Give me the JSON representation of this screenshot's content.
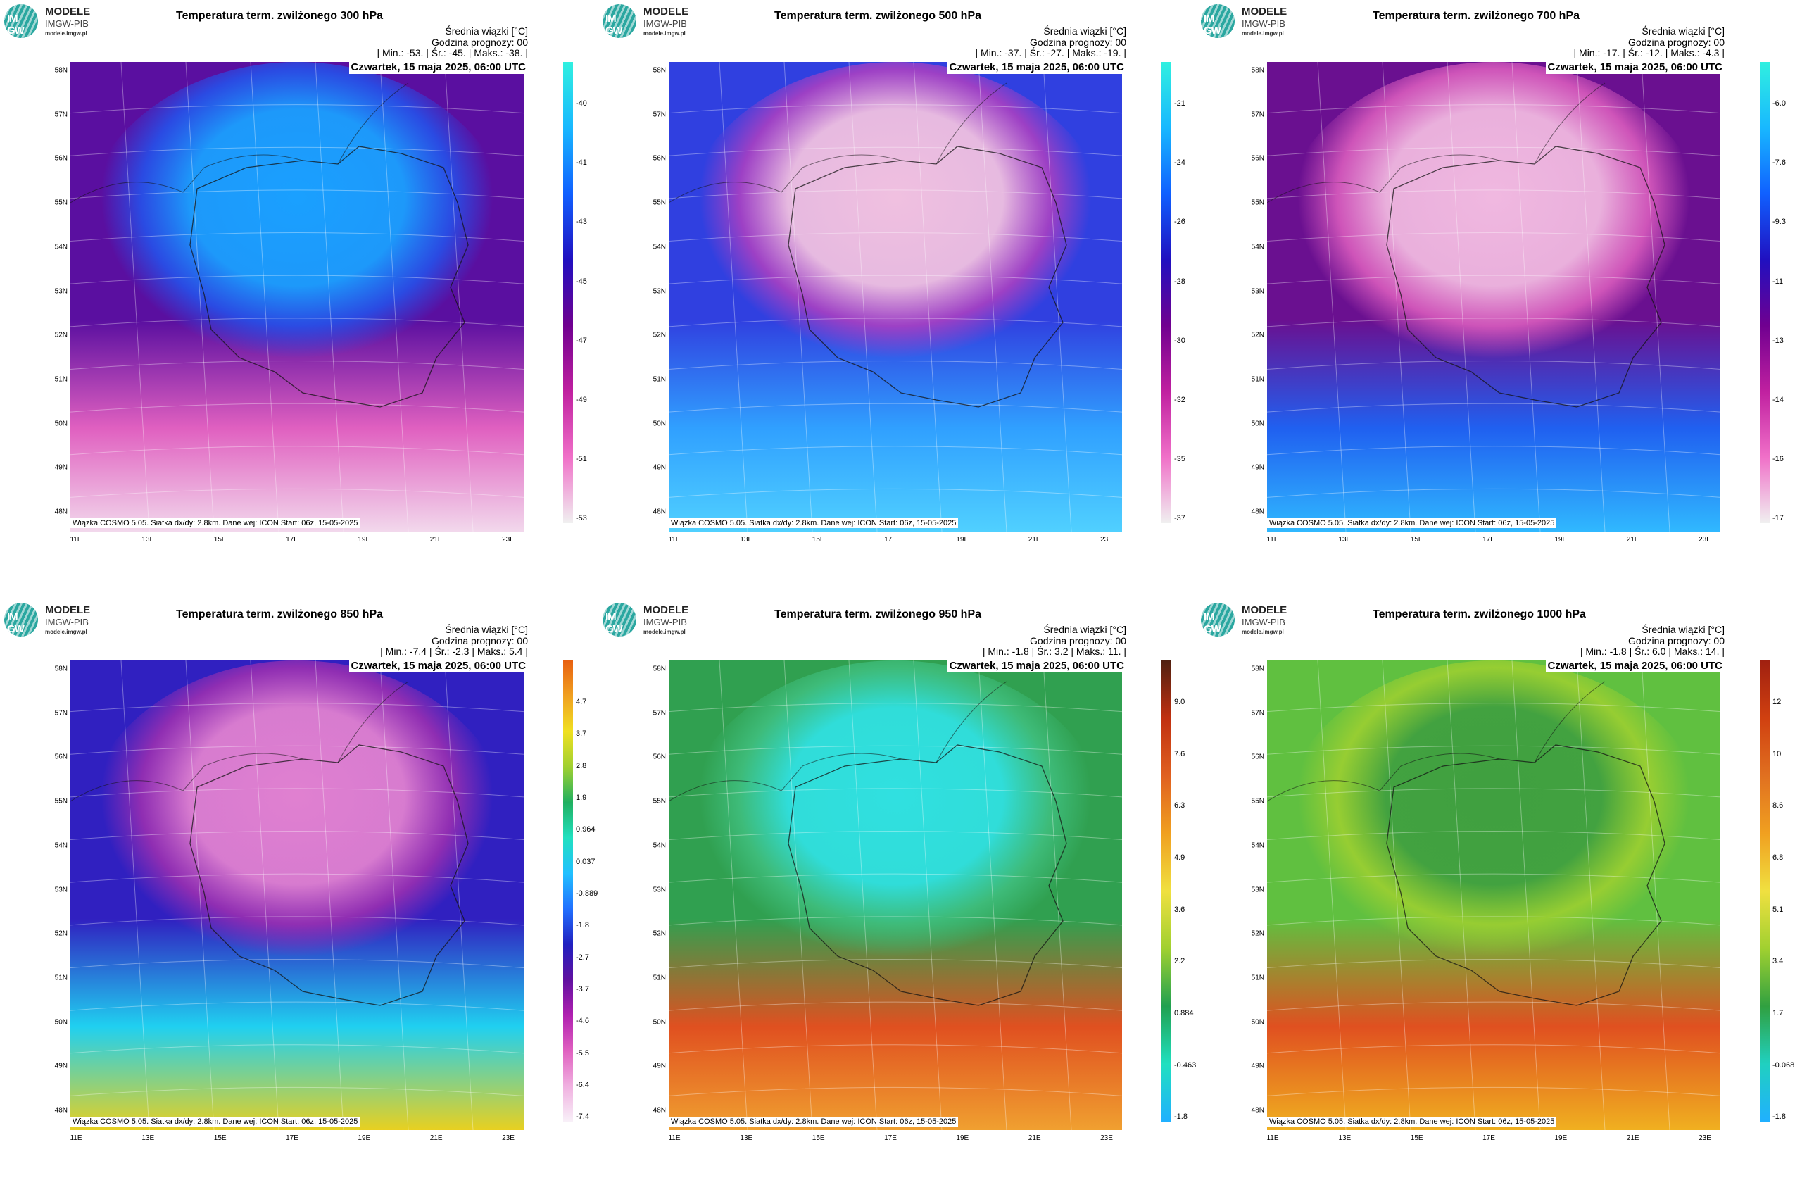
{
  "logo": {
    "name": "MODELE",
    "org": "IMGW-PIB",
    "url": "modele.imgw.pl",
    "mark_top": "IM",
    "mark_bottom": "GW"
  },
  "common": {
    "mean_label": "Średnia wiązki [°C]",
    "forecast_hour": "Godzina prognozy: 00",
    "date": "Czwartek, 15 maja 2025, 06:00 UTC",
    "footer": "Wiązka COSMO 5.05. Siatka dx/dy: 2.8km. Dane wej: ICON Start: 06z, 15-05-2025",
    "lat_labels": [
      "58N",
      "57N",
      "56N",
      "55N",
      "54N",
      "53N",
      "52N",
      "51N",
      "50N",
      "49N",
      "48N"
    ],
    "lon_labels": [
      "11E",
      "13E",
      "15E",
      "17E",
      "19E",
      "21E",
      "23E"
    ]
  },
  "panels": [
    {
      "title": "Temperatura term. zwilżonego 300 hPa",
      "stats": "| Min.:   -53. | Śr.:   -45. | Maks.:   -38. |",
      "min": -53,
      "mean": -45,
      "max": -38,
      "colorbar_ticks": [
        "-40",
        "-41",
        "-43",
        "-45",
        "-47",
        "-49",
        "-51",
        "-53"
      ],
      "field_colors": {
        "outer": "#5a0fa0",
        "ring": "#2255ee",
        "core": "#1aa0ff",
        "south": "#e060c0",
        "corner": "#f2d8ec"
      },
      "cbar_colors": [
        "#30f0e0",
        "#18b8ff",
        "#1060ff",
        "#2010c0",
        "#700090",
        "#c020a0",
        "#f070c8",
        "#f0f0f0"
      ]
    },
    {
      "title": "Temperatura term. zwilżonego 500 hPa",
      "stats": "| Min.:   -37. | Śr.:   -27. | Maks.:   -19. |",
      "min": -37,
      "mean": -27,
      "max": -19,
      "colorbar_ticks": [
        "-21",
        "-24",
        "-26",
        "-28",
        "-30",
        "-32",
        "-35",
        "-37"
      ],
      "field_colors": {
        "outer": "#3040e0",
        "ring": "#b040c0",
        "core": "#f0c0e0",
        "south": "#30a0ff",
        "corner": "#50d0ff"
      },
      "cbar_colors": [
        "#30f0e0",
        "#18b8ff",
        "#1060ff",
        "#2010c0",
        "#700090",
        "#c020a0",
        "#f070c8",
        "#f0f0f0"
      ]
    },
    {
      "title": "Temperatura term. zwilżonego 700 hPa",
      "stats": "| Min.:   -17. | Śr.:   -12. | Maks.:   -4.3 |",
      "min": -17,
      "mean": -12,
      "max": -4.3,
      "colorbar_ticks": [
        "-6.0",
        "-7.6",
        "-9.3",
        "-11",
        "-13",
        "-14",
        "-16",
        "-17"
      ],
      "field_colors": {
        "outer": "#6a1090",
        "ring": "#e060c0",
        "core": "#f0b8e0",
        "south": "#2060f0",
        "corner": "#30b8ff"
      },
      "cbar_colors": [
        "#30f0e0",
        "#18b8ff",
        "#1060ff",
        "#2010c0",
        "#700090",
        "#c020a0",
        "#f070c8",
        "#f0f0f0"
      ]
    },
    {
      "title": "Temperatura term. zwilżonego 850 hPa",
      "stats": "| Min.:   -7.4 | Śr.:   -2.3 | Maks.:   5.4 |",
      "min": -7.4,
      "mean": -2.3,
      "max": 5.4,
      "colorbar_ticks": [
        "4.7",
        "3.7",
        "2.8",
        "1.9",
        "0.964",
        "0.037",
        "-0.889",
        "-1.8",
        "-2.7",
        "-3.7",
        "-4.6",
        "-5.5",
        "-6.4",
        "-7.4"
      ],
      "field_colors": {
        "outer": "#3020c0",
        "ring": "#a030b0",
        "core": "#e080d0",
        "south": "#20d0f0",
        "corner": "#e8d020"
      },
      "cbar_colors": [
        "#e86010",
        "#f0a020",
        "#f0e020",
        "#a0d030",
        "#20b060",
        "#20e0c0",
        "#20c0ff",
        "#2070ff",
        "#2020c0",
        "#6010a0",
        "#b020b0",
        "#e060c0",
        "#f0b0e0",
        "#f8f0f8"
      ]
    },
    {
      "title": "Temperatura term. zwilżonego 950 hPa",
      "stats": "| Min.:   -1.8 | Śr.:   3.2 | Maks.:   11. |",
      "min": -1.8,
      "mean": 3.2,
      "max": 11,
      "colorbar_ticks": [
        "9.0",
        "7.6",
        "6.3",
        "4.9",
        "3.6",
        "2.2",
        "0.884",
        "-0.463",
        "-1.8"
      ],
      "field_colors": {
        "outer": "#30a050",
        "ring": "#40c080",
        "core": "#30e0e0",
        "south": "#e05020",
        "corner": "#f0a030"
      },
      "cbar_colors": [
        "#502010",
        "#c03010",
        "#e06020",
        "#f0a020",
        "#f0e040",
        "#a0d030",
        "#20a050",
        "#20e0c0",
        "#20b0ff"
      ]
    },
    {
      "title": "Temperatura term. zwilżonego 1000 hPa",
      "stats": "| Min.:   -1.8 | Śr.:   6.0 | Maks.:   14. |",
      "min": -1.8,
      "mean": 6.0,
      "max": 14,
      "colorbar_ticks": [
        "12",
        "10",
        "8.6",
        "6.8",
        "5.1",
        "3.4",
        "1.7",
        "-0.068",
        "-1.8"
      ],
      "field_colors": {
        "outer": "#60c040",
        "ring": "#a0d030",
        "core": "#40a040",
        "south": "#e05020",
        "corner": "#f0b020"
      },
      "cbar_colors": [
        "#a02010",
        "#d04010",
        "#e07020",
        "#f0a020",
        "#f0e040",
        "#a0d030",
        "#30a040",
        "#20d0c0",
        "#20b0ff"
      ]
    }
  ]
}
